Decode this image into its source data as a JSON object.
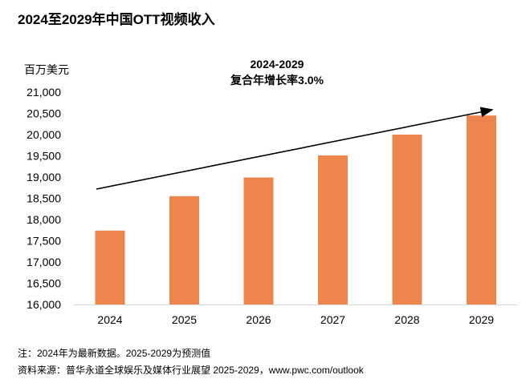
{
  "chart_data": {
    "type": "bar",
    "title": "2024至2029年中国OTT视频收入",
    "ylabel": "百万美元",
    "categories": [
      "2024",
      "2025",
      "2026",
      "2027",
      "2028",
      "2029"
    ],
    "values": [
      17740,
      18550,
      18990,
      19510,
      20000,
      20450
    ],
    "ylim": [
      16000,
      21000
    ],
    "yticks": [
      "16,000",
      "16,500",
      "17,000",
      "17,500",
      "18,000",
      "18,500",
      "19,000",
      "19,500",
      "20,000",
      "20,500",
      "21,000"
    ],
    "grid": false,
    "bar_color": "#EE854D",
    "annotation": {
      "line1": "2024-2029",
      "line2": "复合年增长率3.0%"
    }
  },
  "footnotes": {
    "note": "注：2024年为最新数据。2025-2029为预测值",
    "source": "资料来源：普华永道全球娱乐及媒体行业展望 2025-2029，www.pwc.com/outlook"
  }
}
